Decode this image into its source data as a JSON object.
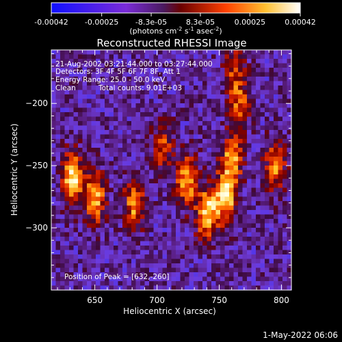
{
  "colorbar": {
    "tick_labels": [
      "-0.00042",
      "-0.00025",
      "-8.3e-05",
      "8.3e-05",
      "0.00025",
      "0.00042"
    ],
    "tick_values": [
      -0.00042,
      -0.00025,
      -8.3e-05,
      8.3e-05,
      0.00025,
      0.00042
    ],
    "range": [
      -0.00042,
      0.00042
    ],
    "colors": [
      "#1e1eff",
      "#8a2be2",
      "#5a1a7a",
      "#b00000",
      "#ff6000",
      "#ffd040",
      "#ffffff"
    ]
  },
  "colorbar_units": {
    "base": "(photons cm",
    "exp1": "-2",
    "mid1": " s",
    "exp2": "-1",
    "mid2": " asec",
    "exp3": "-2",
    "end": ")"
  },
  "chart_data": {
    "type": "heatmap",
    "title": "Reconstructed RHESSI Image",
    "xlabel": "Heliocentric X (arcsec)",
    "ylabel": "Heliocentric Y (arcsec)",
    "xlim": [
      615,
      808
    ],
    "ylim": [
      -350,
      -157
    ],
    "xticks": [
      650,
      700,
      750,
      800
    ],
    "yticks": [
      -200,
      -250,
      -300
    ],
    "sources": [
      {
        "x": 632,
        "y": -260,
        "relative_intensity": 1.0
      },
      {
        "x": 650,
        "y": -276,
        "relative_intensity": 0.85
      },
      {
        "x": 682,
        "y": -280,
        "relative_intensity": 0.75
      },
      {
        "x": 705,
        "y": -235,
        "relative_intensity": 0.5
      },
      {
        "x": 724,
        "y": -262,
        "relative_intensity": 0.8
      },
      {
        "x": 740,
        "y": -289,
        "relative_intensity": 0.95
      },
      {
        "x": 755,
        "y": -275,
        "relative_intensity": 0.95
      },
      {
        "x": 760,
        "y": -245,
        "relative_intensity": 0.75
      },
      {
        "x": 766,
        "y": -200,
        "relative_intensity": 0.55
      },
      {
        "x": 762,
        "y": -170,
        "relative_intensity": 0.45
      },
      {
        "x": 795,
        "y": -250,
        "relative_intensity": 0.65
      }
    ],
    "annotations": {
      "time_range": "21-Aug-2002 03:21:44.000 to 03:27:44.000",
      "detectors": "Detectors: 3F 4F 5F 6F 7F 8F, Att 1",
      "energy_range": "Energy Range: 25.0 - 50.0 keV",
      "method": "Clean",
      "total_counts": "Total counts: 9.01E+03",
      "peak_position": "Position of Peak = [632,-260]"
    }
  },
  "footer": {
    "timestamp": "1-May-2022 06:06"
  }
}
